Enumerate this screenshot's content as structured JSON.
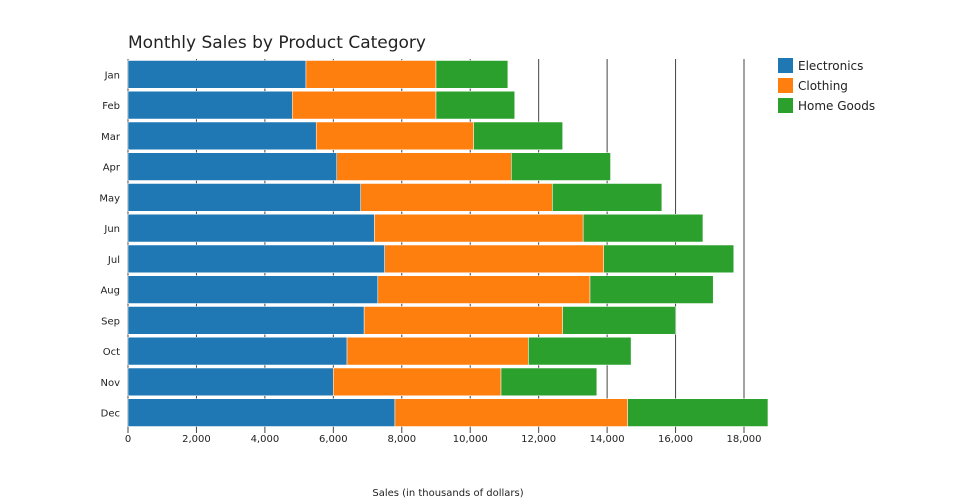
{
  "chart_data": {
    "type": "bar",
    "orientation": "horizontal",
    "stacked": true,
    "title": "Monthly Sales by Product Category",
    "xlabel": "Sales (in thousands of dollars)",
    "ylabel": "",
    "xlim": [
      0,
      19000
    ],
    "xticks": [
      0,
      2000,
      4000,
      6000,
      8000,
      10000,
      12000,
      14000,
      16000,
      18000
    ],
    "xtick_labels": [
      "0",
      "2,000",
      "4,000",
      "6,000",
      "8,000",
      "10,000",
      "12,000",
      "14,000",
      "16,000",
      "18,000"
    ],
    "grid": true,
    "legend_position": "top-right",
    "categories": [
      "Jan",
      "Feb",
      "Mar",
      "Apr",
      "May",
      "Jun",
      "Jul",
      "Aug",
      "Sep",
      "Oct",
      "Nov",
      "Dec"
    ],
    "series": [
      {
        "name": "Electronics",
        "color": "#1f77b4",
        "values": [
          5200,
          4800,
          5500,
          6100,
          6800,
          7200,
          7500,
          7300,
          6900,
          6400,
          6000,
          7800
        ]
      },
      {
        "name": "Clothing",
        "color": "#ff7f0e",
        "values": [
          3800,
          4200,
          4600,
          5100,
          5600,
          6100,
          6400,
          6200,
          5800,
          5300,
          4900,
          6800
        ]
      },
      {
        "name": "Home Goods",
        "color": "#2ca02c",
        "values": [
          2100,
          2300,
          2600,
          2900,
          3200,
          3500,
          3800,
          3600,
          3300,
          3000,
          2800,
          4100
        ]
      }
    ]
  }
}
